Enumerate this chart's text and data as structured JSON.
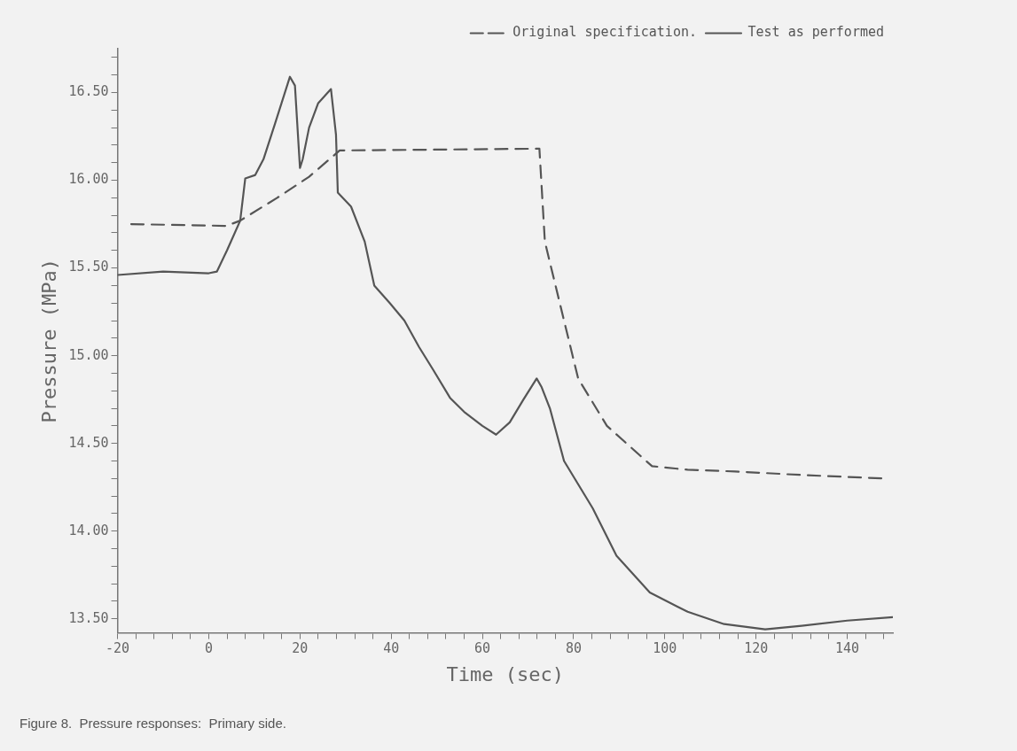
{
  "chart_data": {
    "type": "line",
    "xlabel": "Time (sec)",
    "ylabel": "Pressure (MPa)",
    "xlim": [
      -20,
      150
    ],
    "ylim": [
      13.42,
      16.75
    ],
    "xticks": [
      -20,
      {
        "value": -16,
        "label": null
      },
      {
        "value": -12,
        "label": null
      },
      {
        "value": -8,
        "label": null
      },
      {
        "value": -4,
        "label": null
      },
      0,
      {
        "value": 4,
        "label": null
      },
      {
        "value": 8,
        "label": null
      },
      {
        "value": 12,
        "label": null
      },
      {
        "value": 16,
        "label": null
      },
      20,
      {
        "value": 24,
        "label": null
      },
      {
        "value": 28,
        "label": null
      },
      {
        "value": 32,
        "label": null
      },
      {
        "value": 36,
        "label": null
      },
      40,
      {
        "value": 44,
        "label": null
      },
      {
        "value": 48,
        "label": null
      },
      {
        "value": 52,
        "label": null
      },
      {
        "value": 56,
        "label": null
      },
      60,
      {
        "value": 64,
        "label": null
      },
      {
        "value": 68,
        "label": null
      },
      {
        "value": 72,
        "label": null
      },
      {
        "value": 76,
        "label": null
      },
      80,
      {
        "value": 84,
        "label": null
      },
      {
        "value": 88,
        "label": null
      },
      {
        "value": 92,
        "label": null
      },
      {
        "value": 96,
        "label": null
      },
      100,
      {
        "value": 104,
        "label": null
      },
      {
        "value": 108,
        "label": null
      },
      {
        "value": 112,
        "label": null
      },
      {
        "value": 116,
        "label": null
      },
      120,
      {
        "value": 124,
        "label": null
      },
      {
        "value": 128,
        "label": null
      },
      {
        "value": 132,
        "label": null
      },
      {
        "value": 136,
        "label": null
      },
      140,
      {
        "value": 144,
        "label": null
      },
      {
        "value": 148,
        "label": null
      }
    ],
    "yticks": [
      {
        "value": 13.5,
        "label": "13.50"
      },
      {
        "value": 13.6,
        "label": null
      },
      {
        "value": 13.7,
        "label": null
      },
      {
        "value": 13.8,
        "label": null
      },
      {
        "value": 13.9,
        "label": null
      },
      {
        "value": 14,
        "label": "14.00"
      },
      {
        "value": 14.1,
        "label": null
      },
      {
        "value": 14.2,
        "label": null
      },
      {
        "value": 14.3,
        "label": null
      },
      {
        "value": 14.4,
        "label": null
      },
      {
        "value": 14.5,
        "label": "14.50"
      },
      {
        "value": 14.6,
        "label": null
      },
      {
        "value": 14.7,
        "label": null
      },
      {
        "value": 14.8,
        "label": null
      },
      {
        "value": 14.9,
        "label": null
      },
      {
        "value": 15,
        "label": "15.00"
      },
      {
        "value": 15.1,
        "label": null
      },
      {
        "value": 15.2,
        "label": null
      },
      {
        "value": 15.3,
        "label": null
      },
      {
        "value": 15.4,
        "label": null
      },
      {
        "value": 15.5,
        "label": "15.50"
      },
      {
        "value": 15.6,
        "label": null
      },
      {
        "value": 15.7,
        "label": null
      },
      {
        "value": 15.8,
        "label": null
      },
      {
        "value": 15.9,
        "label": null
      },
      {
        "value": 16,
        "label": "16.00"
      },
      {
        "value": 16.1,
        "label": null
      },
      {
        "value": 16.2,
        "label": null
      },
      {
        "value": 16.3,
        "label": null
      },
      {
        "value": 16.4,
        "label": null
      },
      {
        "value": 16.5,
        "label": "16.50"
      },
      {
        "value": 16.6,
        "label": null
      },
      {
        "value": 16.7,
        "label": null
      }
    ],
    "grid": false,
    "legend": "top right",
    "marker": "none",
    "series": [
      {
        "name": "Original specification.",
        "color": "#555555",
        "line_style": "dashed",
        "x": [
          -17,
          3.9,
          6.9,
          15,
          22,
          28.7,
          72.5,
          73.7,
          77.9,
          81,
          87.3,
          94.6,
          97.2,
          105,
          115.4,
          130,
          148
        ],
        "values": [
          15.75,
          15.74,
          15.77,
          15.9,
          16.02,
          16.17,
          16.18,
          15.65,
          15.2,
          14.87,
          14.6,
          14.43,
          14.37,
          14.35,
          14.34,
          14.32,
          14.3
        ]
      },
      {
        "name": "Test as performed",
        "color": "#555555",
        "line_style": "solid",
        "x": [
          -20,
          -10,
          0,
          1.8,
          4,
          6.9,
          8,
          10.2,
          12,
          14.5,
          17.8,
          18.9,
          20,
          20.6,
          22,
          24,
          26.8,
          27.9,
          28.3,
          31.2,
          34.2,
          36.3,
          39.7,
          42.9,
          46.1,
          49.2,
          52.9,
          56,
          60,
          63,
          66,
          69,
          71.9,
          73,
          74.8,
          77.9,
          84.2,
          89.4,
          96.7,
          105,
          113,
          122,
          130,
          140,
          150
        ],
        "values": [
          15.46,
          15.48,
          15.47,
          15.48,
          15.6,
          15.77,
          16.01,
          16.03,
          16.12,
          16.32,
          16.59,
          16.54,
          16.07,
          16.12,
          16.3,
          16.44,
          16.52,
          16.26,
          15.93,
          15.85,
          15.65,
          15.4,
          15.3,
          15.2,
          15.05,
          14.92,
          14.76,
          14.68,
          14.6,
          14.55,
          14.62,
          14.75,
          14.87,
          14.82,
          14.7,
          14.4,
          14.13,
          13.86,
          13.65,
          13.54,
          13.47,
          13.44,
          13.46,
          13.49,
          13.51
        ]
      }
    ],
    "annotations": [
      "Figure 8.  Pressure responses:  Primary side."
    ]
  }
}
